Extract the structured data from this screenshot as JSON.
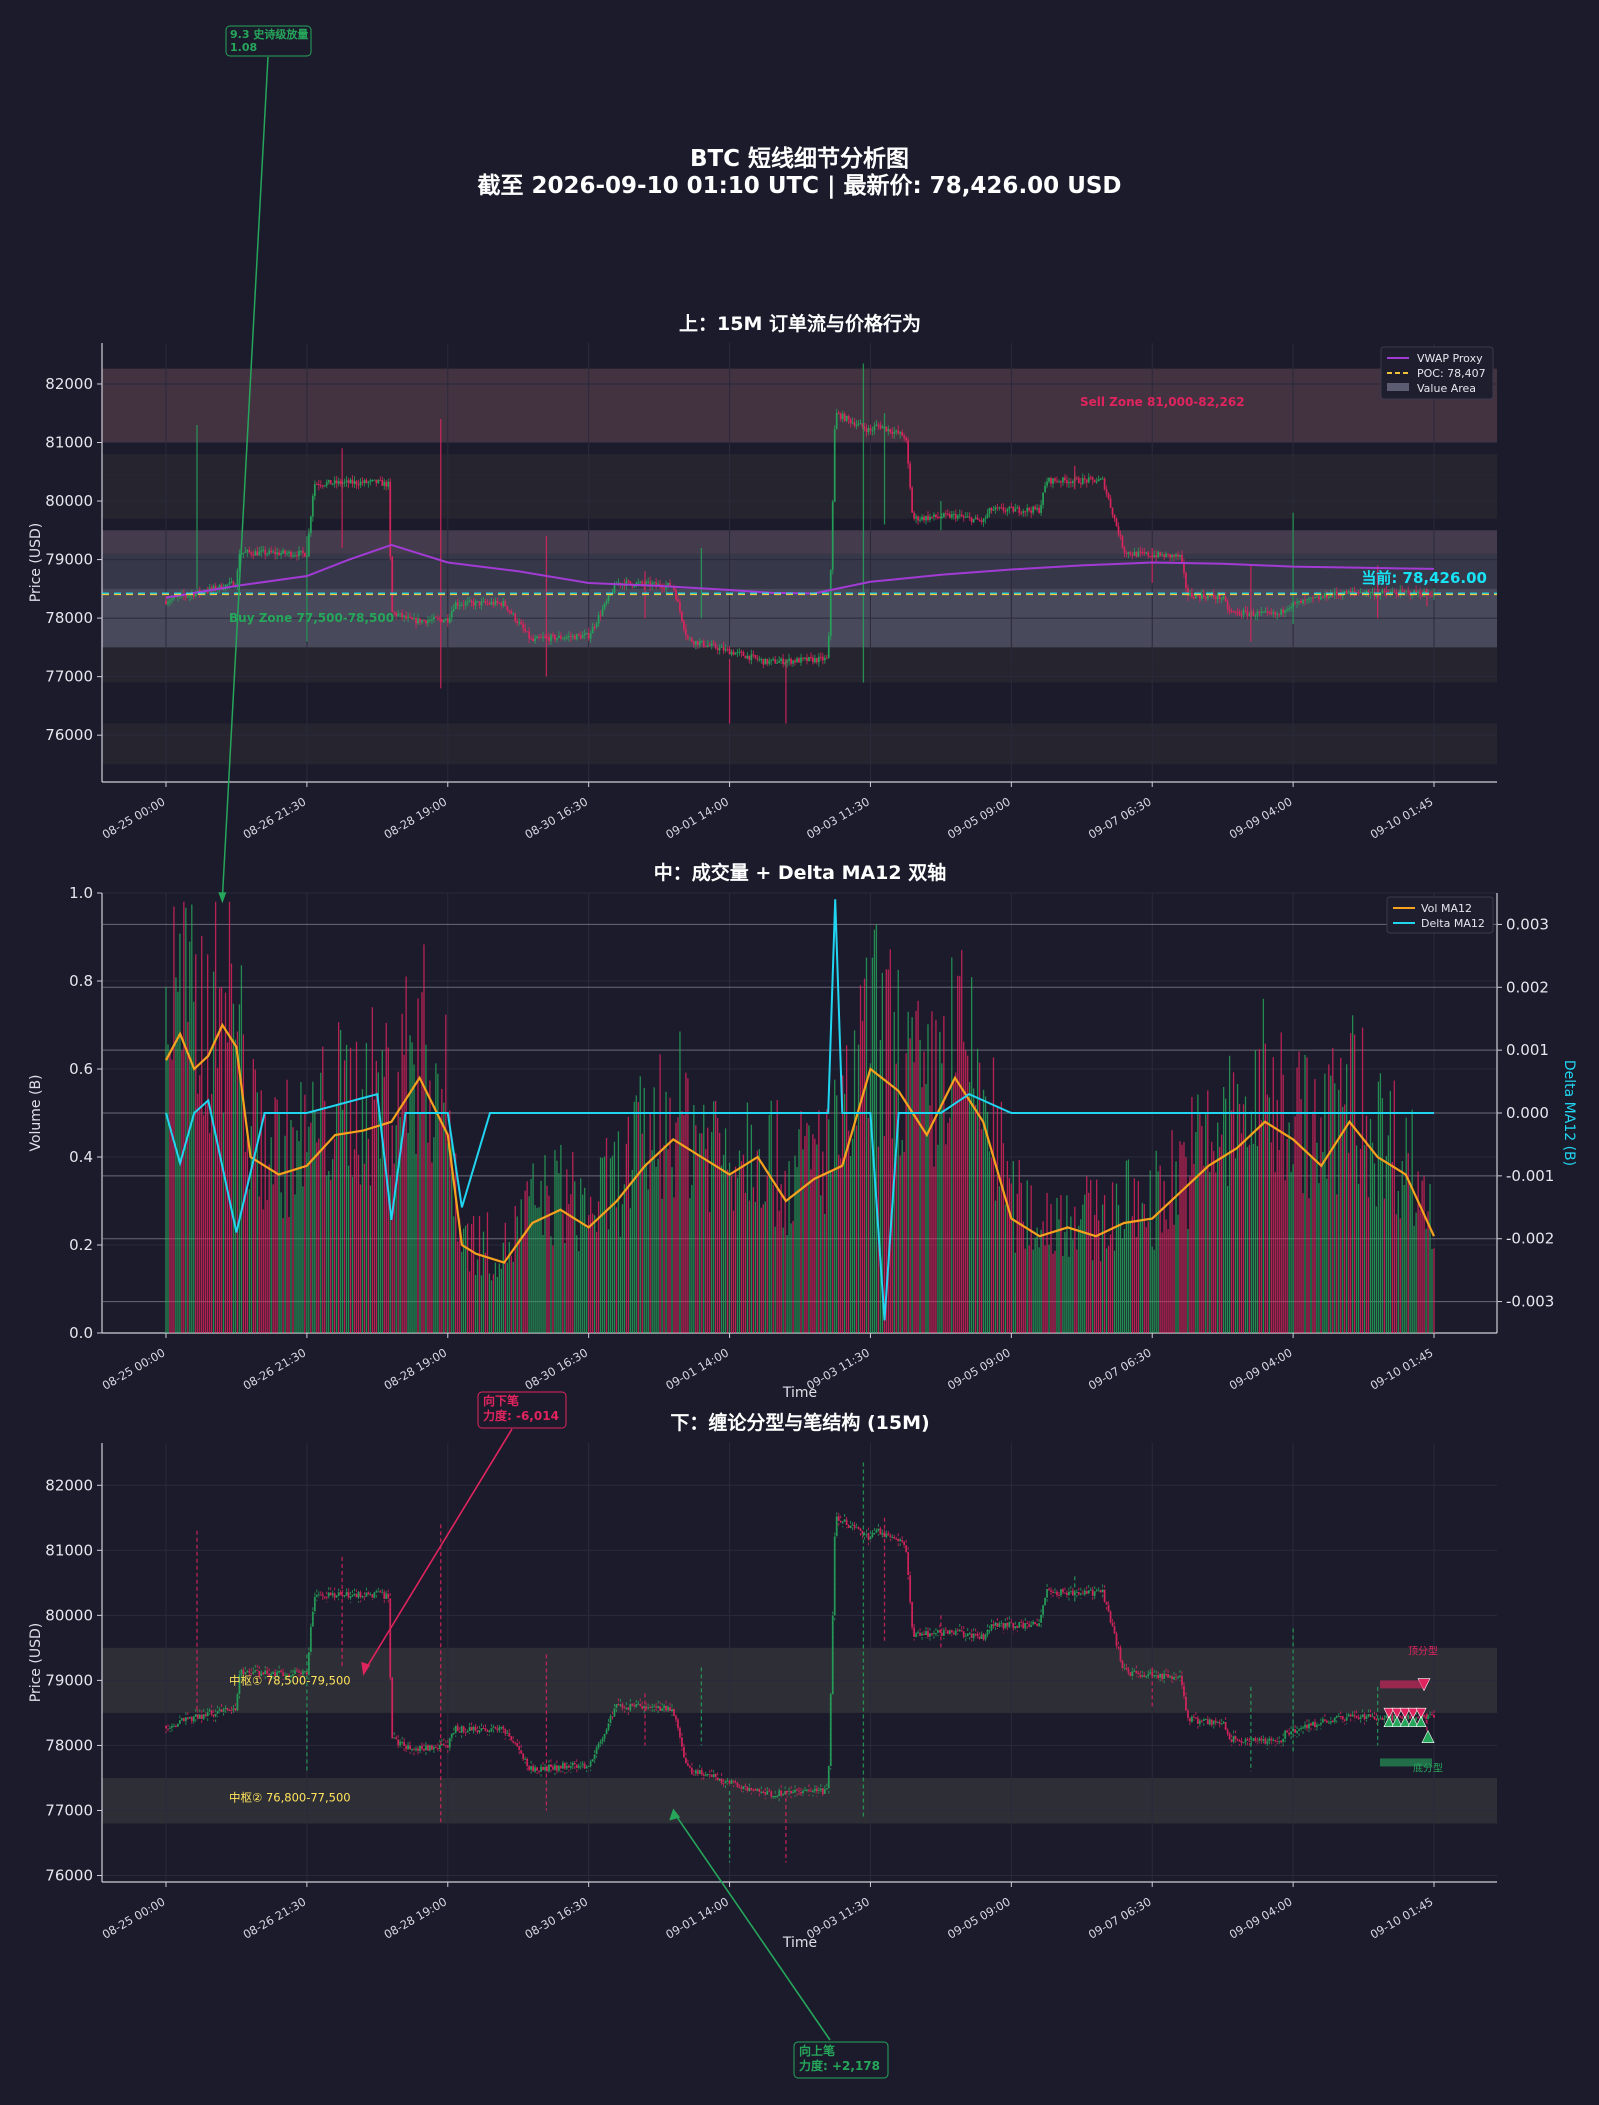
{
  "figure": {
    "title": "BTC 短线细节分析图",
    "subtitle": "截至 2026-09-10 01:10 UTC | 最新价: 78,426.00 USD"
  },
  "colors": {
    "background": "#1b1b2b",
    "up": "#26a65b",
    "down": "#e0245e",
    "vwap": "#a23bd4",
    "poc": "#f0c43a",
    "current": "#17e3f5",
    "vol_ma": "#f6a21e",
    "delta_ma": "#21d4f0",
    "annotation_yellow": "#ffe45c"
  },
  "time_ticks": [
    "08-25 00:00",
    "08-26 21:30",
    "08-28 19:00",
    "08-30 16:30",
    "09-01 14:00",
    "09-03 11:30",
    "09-05 09:00",
    "09-07 06:30",
    "09-09 04:00",
    "09-10 01:45"
  ],
  "chart_data": [
    {
      "type": "line",
      "title": "上：15M 订单流与价格行为",
      "ylabel": "Price (USD)",
      "ylim": [
        75200,
        82700
      ],
      "yticks": [
        76000,
        77000,
        78000,
        79000,
        80000,
        81000,
        82000
      ],
      "legend": {
        "placement": "top-right",
        "entries": [
          "VWAP Proxy",
          "POC: 78,407",
          "Value Area"
        ]
      },
      "vwap": {
        "name": "VWAP Proxy",
        "x": [
          0,
          0.5,
          1,
          1.3,
          1.6,
          2,
          2.5,
          3,
          3.5,
          4,
          4.3,
          4.6,
          5,
          5.5,
          6,
          6.5,
          7,
          7.5,
          8,
          8.5,
          9
        ],
        "values": [
          78350,
          78550,
          78720,
          79000,
          79250,
          78950,
          78800,
          78600,
          78550,
          78480,
          78430,
          78420,
          78620,
          78740,
          78830,
          78900,
          78950,
          78930,
          78880,
          78860,
          78840
        ]
      },
      "poc": 78407,
      "current_price": 78426,
      "current_label": "当前: 78,426.00",
      "value_area": [
        77500,
        79500
      ],
      "zones": [
        {
          "label": "Sell Zone 81,000-82,262",
          "from": 81000,
          "to": 82262
        },
        {
          "label": "Buy Zone 77,500-78,500",
          "from": 77500,
          "to": 78500
        }
      ],
      "extra_bands": [
        [
          79700,
          80400
        ],
        [
          77200,
          77500
        ],
        [
          75500,
          76200
        ],
        [
          80400,
          80800
        ],
        [
          76900,
          77200
        ]
      ]
    },
    {
      "type": "bar",
      "title": "中：成交量 + Delta MA12 双轴",
      "xlabel": "Time",
      "ylabel": "Volume (B)",
      "y2label": "Delta MA12 (B)",
      "ylim": [
        0,
        1.0
      ],
      "yticks": [
        0.0,
        0.2,
        0.4,
        0.6,
        0.8,
        1.0
      ],
      "y2lim": [
        -0.0035,
        0.0035
      ],
      "y2ticks": [
        -0.003,
        -0.002,
        -0.001,
        0.0,
        0.001,
        0.002,
        0.003
      ],
      "legend": {
        "placement": "top-right",
        "entries": [
          "Vol MA12",
          "Delta MA12"
        ]
      },
      "vol_ma12": {
        "name": "Vol MA12",
        "x": [
          0,
          0.1,
          0.2,
          0.3,
          0.4,
          0.5,
          0.6,
          0.8,
          1,
          1.2,
          1.4,
          1.6,
          1.8,
          2,
          2.1,
          2.2,
          2.4,
          2.6,
          2.8,
          3,
          3.2,
          3.4,
          3.6,
          3.8,
          4,
          4.2,
          4.4,
          4.6,
          4.8,
          5,
          5.2,
          5.4,
          5.6,
          5.8,
          6,
          6.2,
          6.4,
          6.6,
          6.8,
          7,
          7.2,
          7.4,
          7.6,
          7.8,
          8,
          8.2,
          8.4,
          8.6,
          8.8,
          9
        ],
        "values": [
          0.62,
          0.68,
          0.6,
          0.63,
          0.7,
          0.65,
          0.4,
          0.36,
          0.38,
          0.45,
          0.46,
          0.48,
          0.58,
          0.45,
          0.2,
          0.18,
          0.16,
          0.25,
          0.28,
          0.24,
          0.3,
          0.38,
          0.44,
          0.4,
          0.36,
          0.4,
          0.3,
          0.35,
          0.38,
          0.6,
          0.55,
          0.45,
          0.58,
          0.48,
          0.26,
          0.22,
          0.24,
          0.22,
          0.25,
          0.26,
          0.32,
          0.38,
          0.42,
          0.48,
          0.44,
          0.38,
          0.48,
          0.4,
          0.36,
          0.22
        ]
      },
      "delta_ma12": {
        "name": "Delta MA12",
        "x": [
          0,
          0.1,
          0.2,
          0.3,
          0.5,
          0.7,
          1,
          1.5,
          1.6,
          1.7,
          2,
          2.1,
          2.3,
          2.5,
          3,
          3.5,
          4,
          4.5,
          4.7,
          4.75,
          4.8,
          5,
          5.1,
          5.2,
          5.3,
          5.5,
          5.7,
          6,
          6.5,
          7,
          7.5,
          8,
          8.5,
          9
        ],
        "values": [
          0.0,
          -0.0008,
          0.0,
          0.0002,
          -0.0019,
          0.0,
          0.0,
          0.0003,
          -0.0017,
          0.0,
          0.0,
          -0.0015,
          0.0,
          0.0,
          0.0,
          0.0,
          0.0,
          0.0,
          0.0,
          0.0034,
          0.0,
          0.0,
          -0.0033,
          0.0,
          0.0,
          0.0,
          0.0003,
          0.0,
          0.0,
          0.0,
          0.0,
          0.0,
          0.0,
          0.0
        ]
      },
      "annotation": {
        "text": "9.3 史诗级放量\n1.08",
        "x": 0.4,
        "y": 0.97
      }
    },
    {
      "type": "line",
      "title": "下：缠论分型与笔结构 (15M)",
      "xlabel": "Time",
      "ylabel": "Price (USD)",
      "ylim": [
        75900,
        82650
      ],
      "yticks": [
        76000,
        77000,
        78000,
        79000,
        80000,
        81000,
        82000
      ],
      "pivots": [
        {
          "label": "中枢① 78,500-79,500",
          "from": 78500,
          "to": 79500
        },
        {
          "label": "中枢② 76,800-77,500",
          "from": 76800,
          "to": 77500
        }
      ],
      "annotations": [
        {
          "text": "向下笔\n力度: -6,014",
          "x": 1.4,
          "y": 79100
        },
        {
          "text": "向上笔\n力度: +2,178",
          "x": 3.6,
          "y": 77000
        }
      ],
      "fractal_labels": [
        "顶分型",
        "底分型"
      ]
    }
  ],
  "price_path": {
    "x": [
      0,
      0.2,
      0.5,
      0.52,
      1.0,
      1.05,
      1.5,
      1.58,
      1.6,
      1.75,
      2.0,
      2.05,
      2.4,
      2.6,
      2.65,
      3.0,
      3.2,
      3.25,
      3.6,
      3.7,
      3.75,
      4.2,
      4.25,
      4.7,
      4.75,
      5.0,
      5.05,
      5.25,
      5.3,
      5.6,
      5.8,
      5.85,
      6.2,
      6.25,
      6.6,
      6.65,
      6.8,
      6.85,
      7.2,
      7.25,
      7.5,
      7.55,
      7.9,
      7.95,
      8.2,
      8.25,
      8.5,
      8.55,
      8.75,
      9.0
    ],
    "values": [
      78300,
      78420,
      78600,
      79120,
      79100,
      80300,
      80320,
      80280,
      78100,
      77950,
      77980,
      78250,
      78250,
      77600,
      77650,
      77700,
      78600,
      78600,
      78550,
      77650,
      77600,
      77300,
      77250,
      77300,
      81500,
      81200,
      81300,
      81100,
      79700,
      79750,
      79650,
      79850,
      79850,
      80350,
      80350,
      80350,
      79150,
      79100,
      79050,
      78400,
      78350,
      78100,
      78050,
      78200,
      78350,
      78400,
      78450,
      78420,
      78430,
      78426
    ]
  },
  "fractals": {
    "top_label": "顶分型",
    "bottom_label": "底分型"
  }
}
